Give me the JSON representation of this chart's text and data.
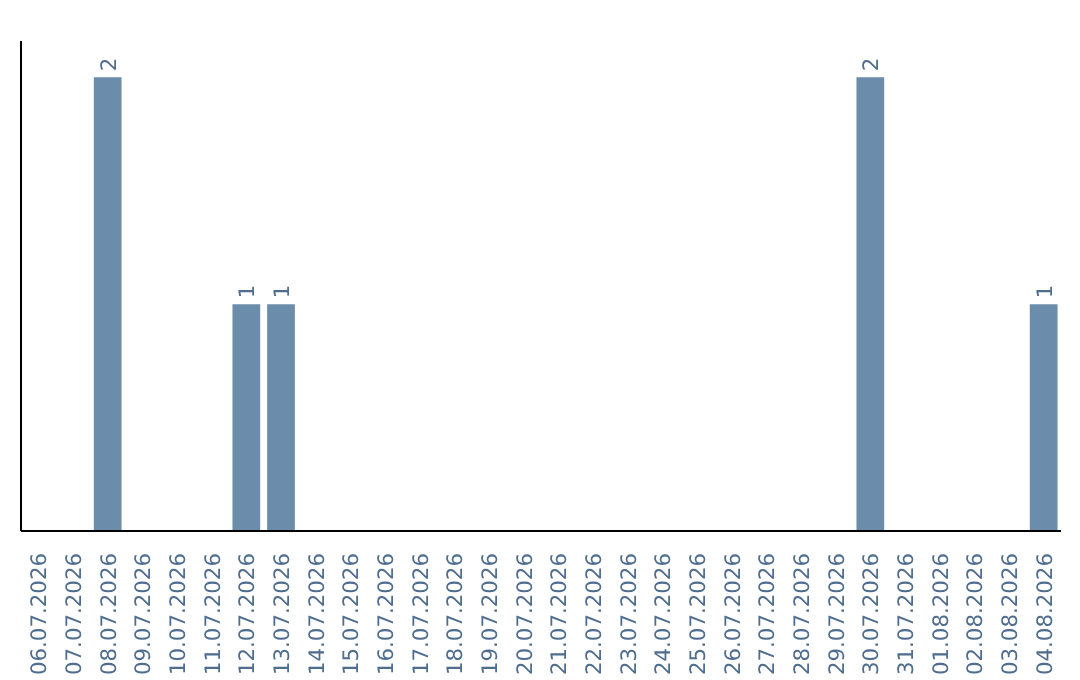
{
  "chart_data": {
    "type": "bar",
    "categories": [
      "06.07.2026",
      "07.07.2026",
      "08.07.2026",
      "09.07.2026",
      "10.07.2026",
      "11.07.2026",
      "12.07.2026",
      "13.07.2026",
      "14.07.2026",
      "15.07.2026",
      "16.07.2026",
      "17.07.2026",
      "18.07.2026",
      "19.07.2026",
      "20.07.2026",
      "21.07.2026",
      "22.07.2026",
      "23.07.2026",
      "24.07.2026",
      "25.07.2026",
      "26.07.2026",
      "27.07.2026",
      "28.07.2026",
      "29.07.2026",
      "30.07.2026",
      "31.07.2026",
      "01.08.2026",
      "02.08.2026",
      "03.08.2026",
      "04.08.2026"
    ],
    "values": [
      0,
      0,
      2,
      0,
      0,
      0,
      1,
      1,
      0,
      0,
      0,
      0,
      0,
      0,
      0,
      0,
      0,
      0,
      0,
      0,
      0,
      0,
      0,
      0,
      2,
      0,
      0,
      0,
      0,
      1
    ],
    "value_labels": [
      null,
      null,
      "2",
      null,
      null,
      null,
      "1",
      "1",
      null,
      null,
      null,
      null,
      null,
      null,
      null,
      null,
      null,
      null,
      null,
      null,
      null,
      null,
      null,
      null,
      "2",
      null,
      null,
      null,
      null,
      "1"
    ],
    "color": "#6b8cab",
    "grid": false,
    "tick_labels": "x"
  }
}
